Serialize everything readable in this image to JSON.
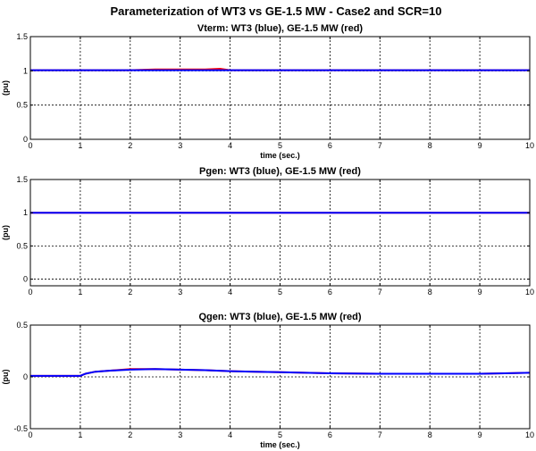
{
  "figure_title": "Parameterization of WT3 vs GE-1.5 MW - Case2 and SCR=10",
  "colors": {
    "wt3": "#0000ff",
    "ge": "#ff0000"
  },
  "chart_data": [
    {
      "type": "line",
      "title": "Vterm: WT3 (blue), GE-1.5 MW (red)",
      "xlabel": "time (sec.)",
      "ylabel": "(pu)",
      "xlim": [
        0,
        10
      ],
      "ylim": [
        0,
        1.5
      ],
      "xticks": [
        "0",
        "1",
        "2",
        "3",
        "4",
        "5",
        "6",
        "7",
        "8",
        "9",
        "10"
      ],
      "yticks": [
        "0",
        "0.5",
        "1",
        "1.5"
      ],
      "grid": true,
      "series": [
        {
          "color": "#ff0000",
          "x": [
            0,
            1,
            2,
            2.5,
            3,
            3.5,
            3.8,
            4,
            5,
            6,
            7,
            8,
            9,
            10
          ],
          "y": [
            1.01,
            1.01,
            1.01,
            1.02,
            1.02,
            1.02,
            1.03,
            1.01,
            1.01,
            1.01,
            1.01,
            1.01,
            1.01,
            1.01
          ]
        },
        {
          "color": "#0000ff",
          "x": [
            0,
            1,
            2,
            3,
            4,
            5,
            6,
            7,
            8,
            9,
            10
          ],
          "y": [
            1.01,
            1.01,
            1.01,
            1.01,
            1.01,
            1.01,
            1.01,
            1.01,
            1.01,
            1.01,
            1.01
          ]
        }
      ]
    },
    {
      "type": "line",
      "title": "Pgen: WT3 (blue), GE-1.5 MW (red)",
      "xlabel": "",
      "ylabel": "(pu)",
      "xlim": [
        0,
        10
      ],
      "ylim": [
        -0.1,
        1.5
      ],
      "xticks": [
        "0",
        "1",
        "2",
        "3",
        "4",
        "5",
        "6",
        "7",
        "8",
        "9",
        "10"
      ],
      "yticks": [
        "0",
        "0.5",
        "1",
        "1.5"
      ],
      "grid": true,
      "series": [
        {
          "color": "#ff0000",
          "x": [
            0,
            1,
            2,
            3,
            4,
            5,
            6,
            7,
            8,
            9,
            10
          ],
          "y": [
            1.0,
            1.0,
            1.0,
            1.0,
            1.0,
            1.0,
            1.0,
            1.0,
            1.0,
            1.0,
            1.0
          ]
        },
        {
          "color": "#0000ff",
          "x": [
            0,
            1,
            2,
            3,
            4,
            5,
            6,
            7,
            8,
            9,
            10
          ],
          "y": [
            1.0,
            1.0,
            1.0,
            1.0,
            1.0,
            1.0,
            1.0,
            1.0,
            1.0,
            1.0,
            1.0
          ]
        }
      ]
    },
    {
      "type": "line",
      "title": "Qgen: WT3 (blue), GE-1.5 MW (red)",
      "xlabel": "time (sec.)",
      "ylabel": "(pu)",
      "xlim": [
        0,
        10
      ],
      "ylim": [
        -0.5,
        0.5
      ],
      "xticks": [
        "0",
        "1",
        "2",
        "3",
        "4",
        "5",
        "6",
        "7",
        "8",
        "9",
        "10"
      ],
      "yticks": [
        "-0.5",
        "0",
        "0.5"
      ],
      "grid": true,
      "series": [
        {
          "color": "#ff0000",
          "x": [
            0,
            1,
            1.1,
            1.3,
            1.6,
            2,
            2.5,
            3,
            3.5,
            4,
            4.5,
            5,
            5.5,
            6,
            6.5,
            7,
            8,
            9,
            9.5,
            10
          ],
          "y": [
            0.01,
            0.01,
            0.03,
            0.05,
            0.06,
            0.075,
            0.075,
            0.07,
            0.065,
            0.055,
            0.05,
            0.045,
            0.04,
            0.035,
            0.032,
            0.03,
            0.03,
            0.03,
            0.035,
            0.04
          ]
        },
        {
          "color": "#0000ff",
          "x": [
            0,
            1,
            1.1,
            1.3,
            1.6,
            2,
            2.5,
            3,
            3.5,
            4,
            4.5,
            5,
            5.5,
            6,
            6.5,
            7,
            8,
            9,
            9.5,
            10
          ],
          "y": [
            0.01,
            0.01,
            0.03,
            0.05,
            0.06,
            0.07,
            0.075,
            0.07,
            0.065,
            0.055,
            0.05,
            0.045,
            0.04,
            0.035,
            0.032,
            0.03,
            0.03,
            0.03,
            0.035,
            0.04
          ]
        }
      ]
    }
  ]
}
